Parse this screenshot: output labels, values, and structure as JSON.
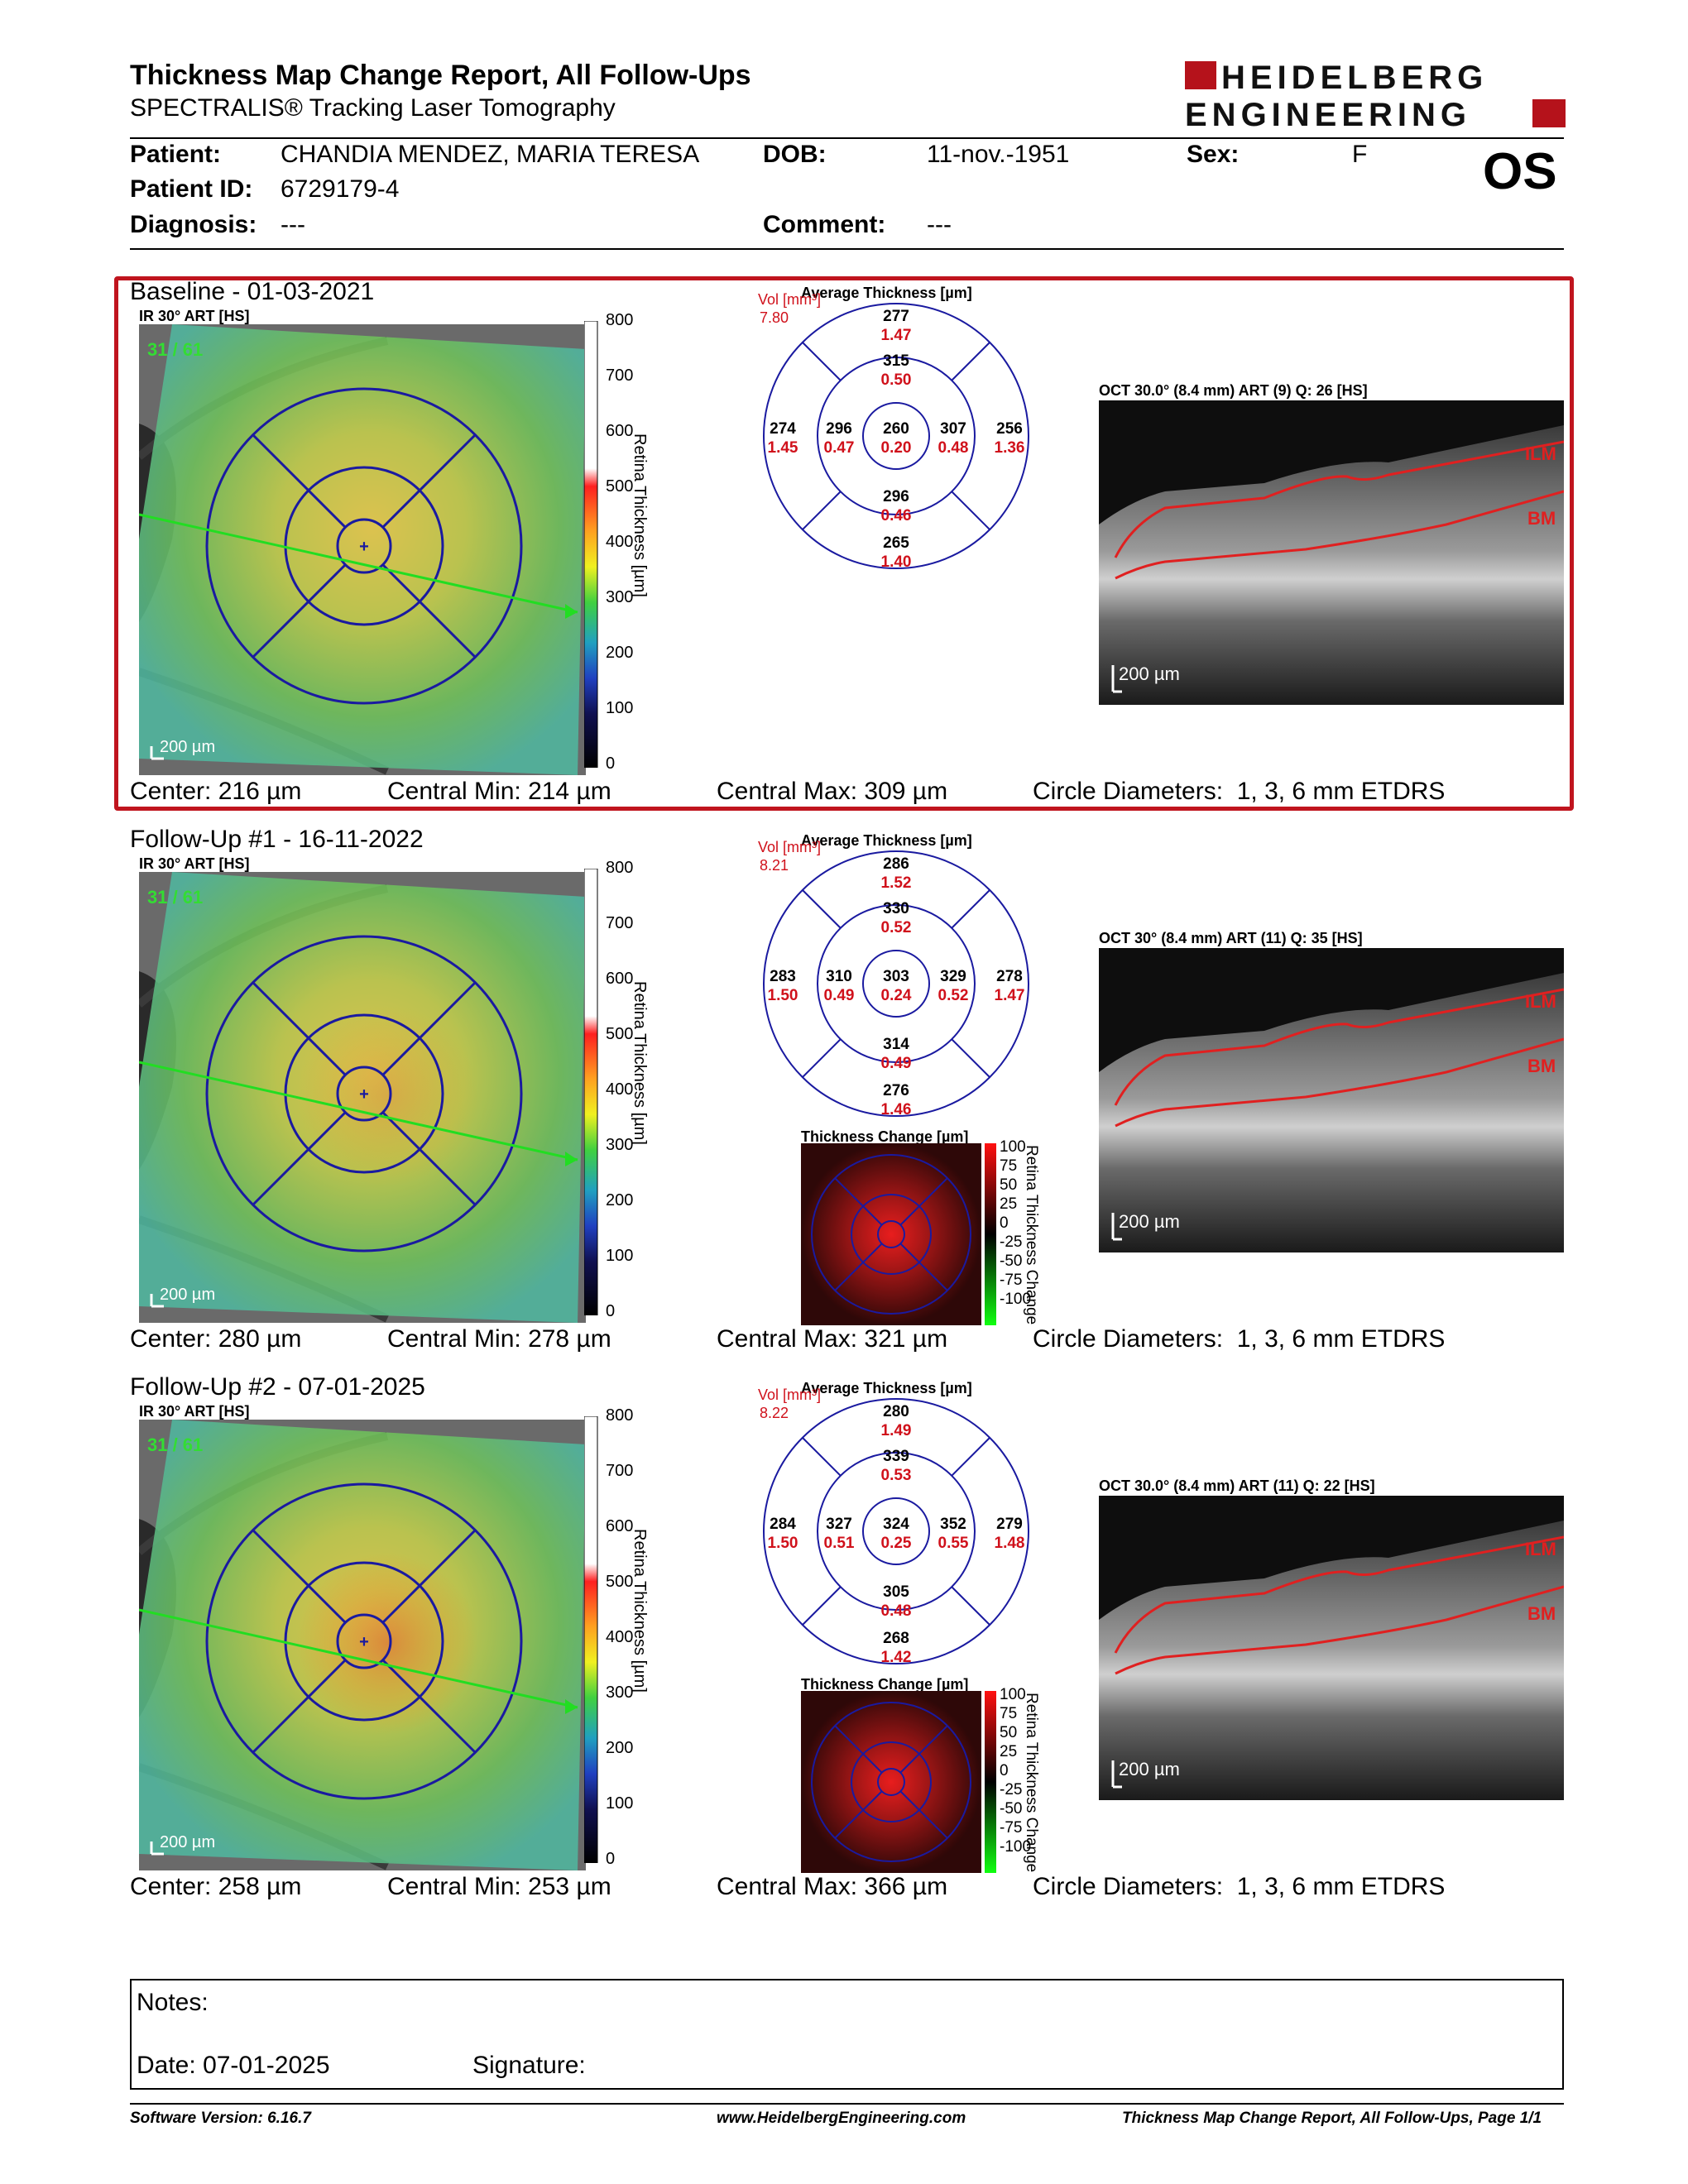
{
  "header": {
    "title": "Thickness Map Change Report, All Follow-Ups",
    "subtitle": "SPECTRALIS® Tracking Laser Tomography",
    "logo_line1": "HEIDELBERG",
    "logo_line2": "ENGINEERING",
    "eye": "OS"
  },
  "patient": {
    "name_label": "Patient:",
    "name": "CHANDIA MENDEZ, MARIA TERESA",
    "dob_label": "DOB:",
    "dob": "11-nov.-1951",
    "sex_label": "Sex:",
    "sex": "F",
    "id_label": "Patient ID:",
    "id": "6729179-4",
    "diagnosis_label": "Diagnosis:",
    "diagnosis": "---",
    "comment_label": "Comment:",
    "comment": "---"
  },
  "colors": {
    "accent": "#c0141e",
    "etdrs_grid": "#1a1aa0",
    "value_red": "#d0111b"
  },
  "common": {
    "ir_label": "IR 30° ART [HS]",
    "scale_bar": "200 µm",
    "cbar_ticks": [
      "800",
      "700",
      "600",
      "500",
      "400",
      "300",
      "200",
      "100",
      "0"
    ],
    "cbar_title": "Retina Thickness [µm]",
    "avg_title": "Average Thickness [µm]",
    "vol_label": "Vol [mm³]",
    "change_title": "Thickness Change [µm]",
    "change_ticks": [
      "100",
      "75",
      "50",
      "25",
      "0",
      "-25",
      "-50",
      "-75",
      "-100"
    ],
    "change_cbar_title": "Retina Thickness Change",
    "ilm": "ILM",
    "bm": "BM",
    "circle_label": "Circle Diameters:",
    "circle_value": "1, 3, 6 mm ETDRS",
    "center_label": "Center:",
    "cmin_label": "Central Min:",
    "cmax_label": "Central Max:"
  },
  "exams": [
    {
      "title": "Baseline - 01-03-2021",
      "frame": "31 / 61",
      "oct_label": "OCT 30.0° (8.4 mm) ART (9) Q: 26 [HS]",
      "vol": "7.80",
      "grid": {
        "center": {
          "t": "260",
          "v": "0.20"
        },
        "inner_sup": {
          "t": "315",
          "v": "0.50"
        },
        "inner_inf": {
          "t": "296",
          "v": "0.46"
        },
        "inner_left": {
          "t": "296",
          "v": "0.47"
        },
        "inner_right": {
          "t": "307",
          "v": "0.48"
        },
        "outer_sup": {
          "t": "277",
          "v": "1.47"
        },
        "outer_inf": {
          "t": "265",
          "v": "1.40"
        },
        "outer_left": {
          "t": "274",
          "v": "1.45"
        },
        "outer_right": {
          "t": "256",
          "v": "1.36"
        }
      },
      "center": "216 µm",
      "cmin": "214 µm",
      "cmax": "309 µm",
      "has_change": false,
      "central_hot": 0.0
    },
    {
      "title": "Follow-Up #1 - 16-11-2022",
      "frame": "31 / 61",
      "oct_label": "OCT 30° (8.4 mm) ART (11) Q: 35 [HS]",
      "vol": "8.21",
      "grid": {
        "center": {
          "t": "303",
          "v": "0.24"
        },
        "inner_sup": {
          "t": "330",
          "v": "0.52"
        },
        "inner_inf": {
          "t": "314",
          "v": "0.49"
        },
        "inner_left": {
          "t": "310",
          "v": "0.49"
        },
        "inner_right": {
          "t": "329",
          "v": "0.52"
        },
        "outer_sup": {
          "t": "286",
          "v": "1.52"
        },
        "outer_inf": {
          "t": "276",
          "v": "1.46"
        },
        "outer_left": {
          "t": "283",
          "v": "1.50"
        },
        "outer_right": {
          "t": "278",
          "v": "1.47"
        }
      },
      "center": "280 µm",
      "cmin": "278 µm",
      "cmax": "321 µm",
      "has_change": true,
      "central_hot": 0.25
    },
    {
      "title": "Follow-Up #2 - 07-01-2025",
      "frame": "31 / 61",
      "oct_label": "OCT 30.0° (8.4 mm) ART (11) Q: 22 [HS]",
      "vol": "8.22",
      "grid": {
        "center": {
          "t": "324",
          "v": "0.25"
        },
        "inner_sup": {
          "t": "339",
          "v": "0.53"
        },
        "inner_inf": {
          "t": "305",
          "v": "0.48"
        },
        "inner_left": {
          "t": "327",
          "v": "0.51"
        },
        "inner_right": {
          "t": "352",
          "v": "0.55"
        },
        "outer_sup": {
          "t": "280",
          "v": "1.49"
        },
        "outer_inf": {
          "t": "268",
          "v": "1.42"
        },
        "outer_left": {
          "t": "284",
          "v": "1.50"
        },
        "outer_right": {
          "t": "279",
          "v": "1.48"
        }
      },
      "center": "258 µm",
      "cmin": "253 µm",
      "cmax": "366 µm",
      "has_change": true,
      "central_hot": 0.6
    }
  ],
  "notes": {
    "notes_label": "Notes:",
    "date_label": "Date:",
    "date": "07-01-2025",
    "signature_label": "Signature:"
  },
  "footer": {
    "software": "Software Version: 6.16.7",
    "website": "www.HeidelbergEngineering.com",
    "page": "Thickness Map Change Report, All Follow-Ups, Page 1/1"
  }
}
